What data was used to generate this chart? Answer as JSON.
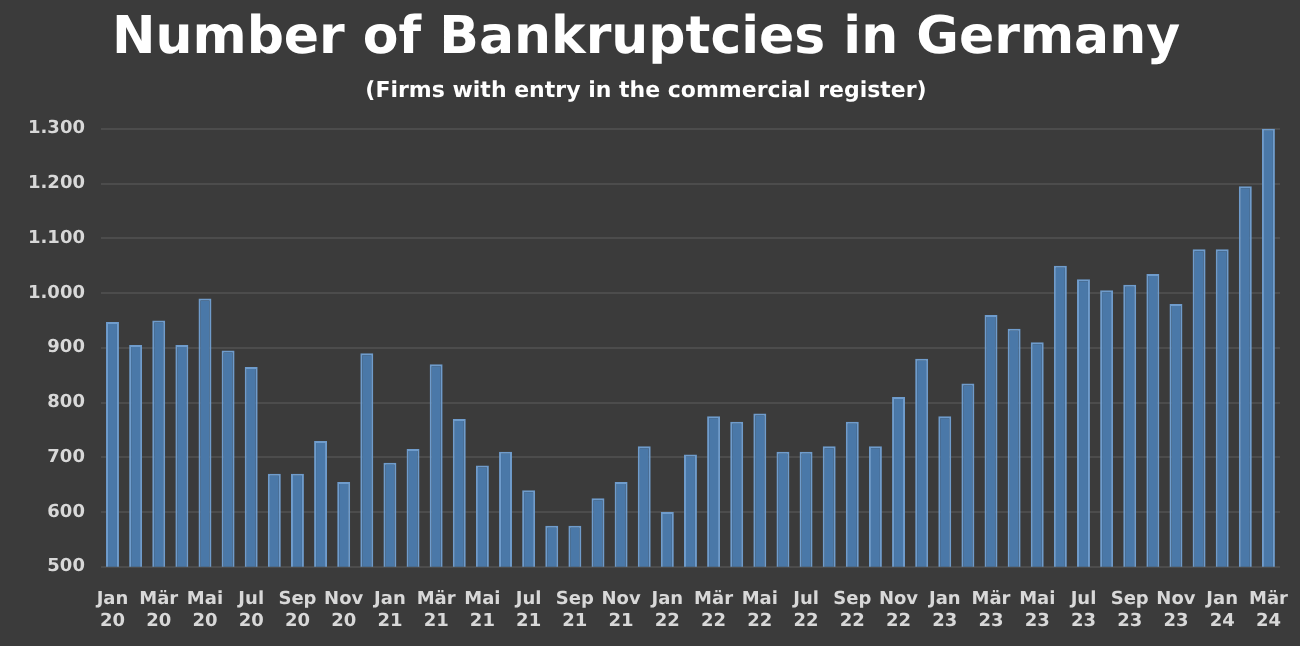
{
  "chart_data": {
    "type": "bar",
    "title": "Number of Bankruptcies in Germany",
    "subtitle": "(Firms with entry in the commercial register)",
    "categories": [
      "Jan 20",
      null,
      "Mär 20",
      null,
      "Mai 20",
      null,
      "Jul 20",
      null,
      "Sep 20",
      null,
      "Nov 20",
      null,
      "Jan 21",
      null,
      "Mär 21",
      null,
      "Mai 21",
      null,
      "Jul 21",
      null,
      "Sep 21",
      null,
      "Nov 21",
      null,
      "Jan 22",
      null,
      "Mär 22",
      null,
      "Mai 22",
      null,
      "Jul 22",
      null,
      "Sep 22",
      null,
      "Nov 22",
      null,
      "Jan 23",
      null,
      "Mär 23",
      null,
      "Mai 23",
      null,
      "Jul 23",
      null,
      "Sep 23",
      null,
      "Nov 23",
      null,
      "Jan 24",
      null,
      "Mär 24"
    ],
    "values": [
      947,
      905,
      950,
      905,
      990,
      895,
      865,
      670,
      670,
      730,
      655,
      890,
      690,
      715,
      870,
      770,
      685,
      710,
      640,
      575,
      575,
      625,
      655,
      720,
      600,
      705,
      775,
      765,
      780,
      710,
      710,
      720,
      765,
      720,
      810,
      880,
      775,
      835,
      960,
      935,
      910,
      1050,
      1025,
      1005,
      1015,
      1035,
      980,
      1080,
      1080,
      1195,
      1300
    ],
    "color": "#4a78a8",
    "ylim": [
      500,
      1300
    ],
    "yticks": [
      500,
      600,
      700,
      800,
      900,
      {
        "value": 1000,
        "label": "1.000"
      },
      {
        "value": 1100,
        "label": "1.100"
      },
      {
        "value": 1200,
        "label": "1.200"
      },
      {
        "value": 1300,
        "label": "1.300"
      }
    ],
    "grid": "y"
  }
}
